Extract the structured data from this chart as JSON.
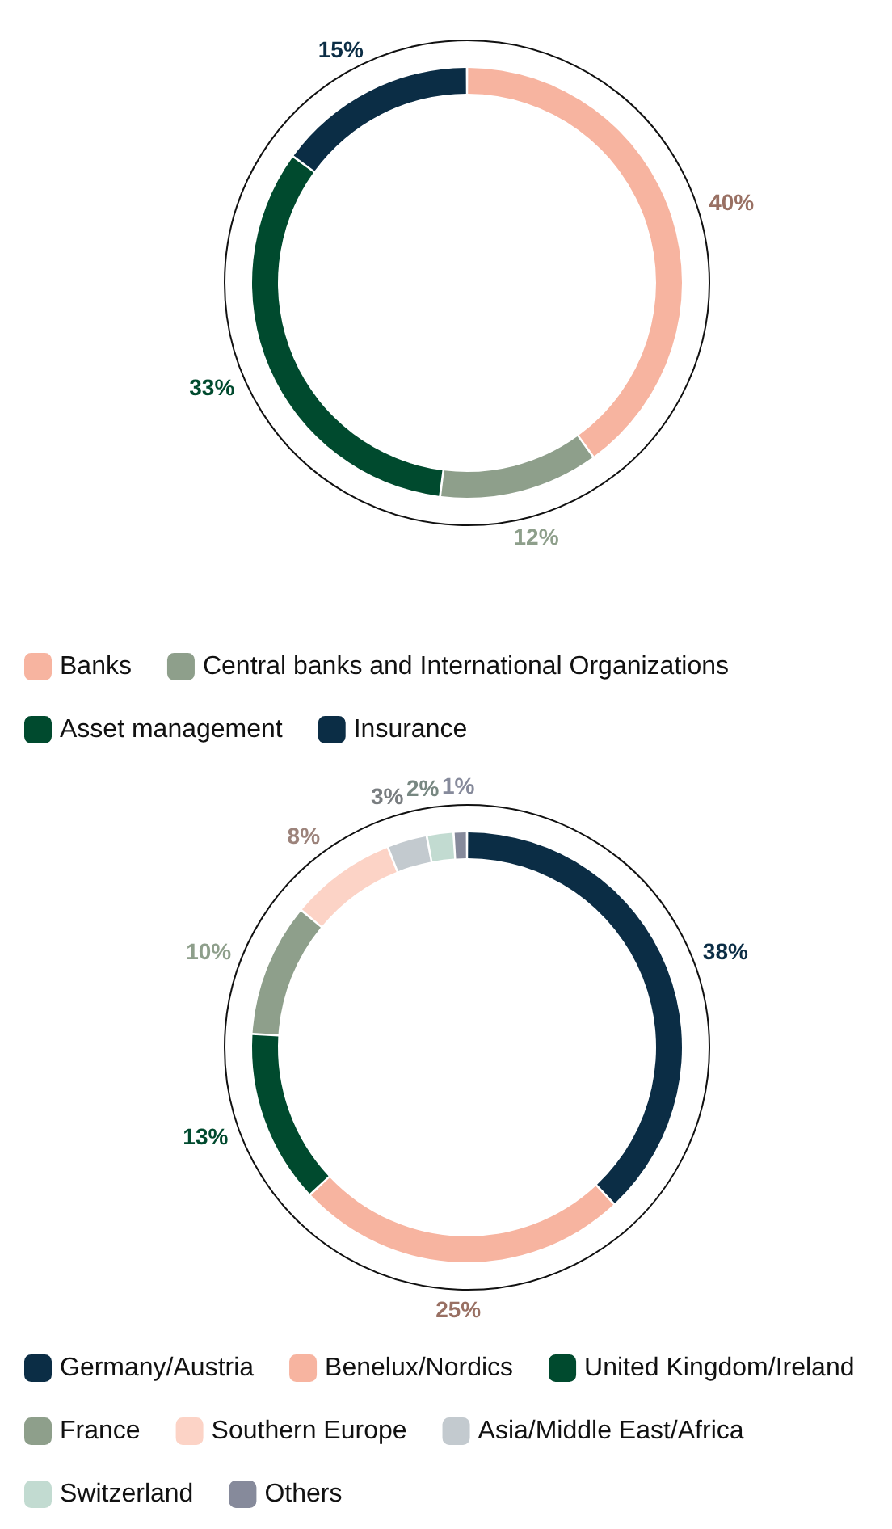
{
  "chart_data": [
    {
      "type": "donut",
      "categories": [
        "Banks",
        "Central banks and International Organizations",
        "Asset management",
        "Insurance"
      ],
      "values": [
        40,
        12,
        33,
        15
      ],
      "colors": [
        "#f7b4a0",
        "#8e9f8b",
        "#004a2e",
        "#0b2d45"
      ],
      "value_labels": [
        "40%",
        "12%",
        "33%",
        "15%"
      ],
      "legend": "bottom"
    },
    {
      "type": "donut",
      "categories": [
        "Germany/Austria",
        "Benelux/Nordics",
        "United Kingdom/Ireland",
        "France",
        "Southern Europe",
        "Asia/Middle East/Africa",
        "Switzerland",
        "Others"
      ],
      "values": [
        38,
        25,
        13,
        10,
        8,
        3,
        2,
        1
      ],
      "colors": [
        "#0b2d45",
        "#f7b4a0",
        "#004a2e",
        "#8e9f8b",
        "#fcd3c6",
        "#c3cacf",
        "#c2dbd1",
        "#868a9b"
      ],
      "value_labels": [
        "38%",
        "25%",
        "13%",
        "10%",
        "8%",
        "3%",
        "2%",
        "1%"
      ],
      "legend": "bottom"
    }
  ]
}
